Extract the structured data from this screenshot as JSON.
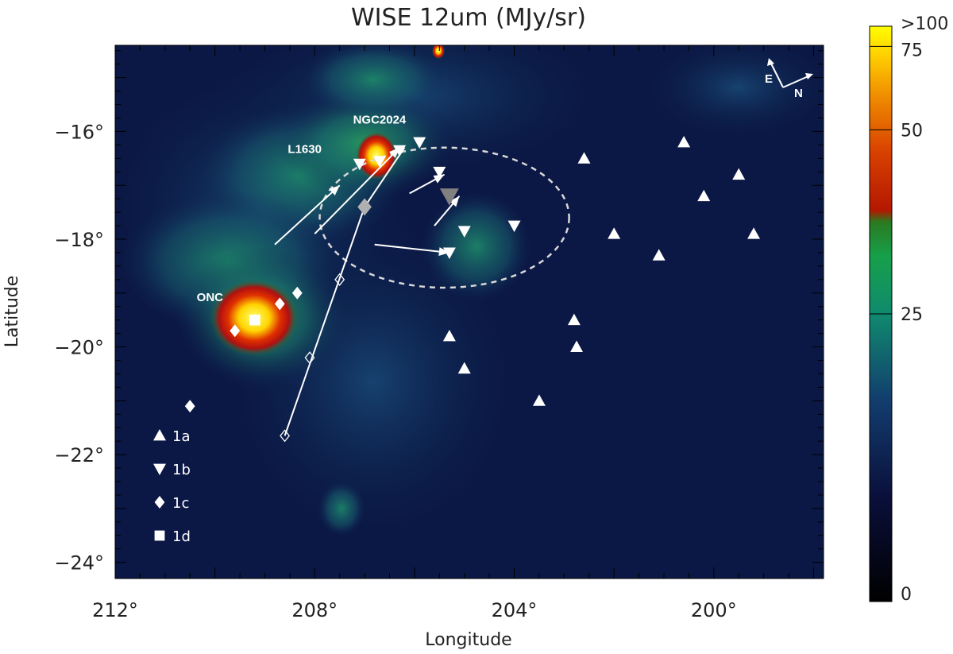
{
  "chart_data": {
    "type": "scatter",
    "title": "WISE 12um (MJy/sr)",
    "xlabel": "Longitude",
    "ylabel": "Latitude",
    "xlim": [
      212,
      197.8
    ],
    "ylim": [
      -24.3,
      -14.4
    ],
    "x_ticks": [
      "212°",
      "208°",
      "204°",
      "200°"
    ],
    "y_ticks": [
      "−16°",
      "−18°",
      "−20°",
      "−22°",
      "−24°"
    ],
    "x_tick_values": [
      212,
      208,
      204,
      200
    ],
    "y_tick_values": [
      -16,
      -18,
      -20,
      -22,
      -24
    ],
    "colorbar": {
      "ticks": [
        "0",
        "25",
        "50",
        "75",
        ">100"
      ],
      "colors": [
        "#000000",
        "#0a0f3a",
        "#123d6e",
        "#108a6e",
        "#16a04a",
        "#2a7a20",
        "#b41800",
        "#d84000",
        "#f08e00",
        "#ffd000",
        "#ffff00"
      ]
    },
    "annotations": [
      {
        "text": "NGC2024",
        "x": 206.7,
        "y": -15.85
      },
      {
        "text": "L1630",
        "x": 208.2,
        "y": -16.4
      },
      {
        "text": "ONC",
        "x": 210.1,
        "y": -19.15
      }
    ],
    "compass": {
      "e": "E",
      "n": "N"
    },
    "legend": {
      "placement": "lower-left",
      "entries": [
        {
          "label": "1a",
          "marker": "triangle-up"
        },
        {
          "label": "1b",
          "marker": "triangle-down"
        },
        {
          "label": "1c",
          "marker": "diamond"
        },
        {
          "label": "1d",
          "marker": "square"
        }
      ]
    },
    "series": [
      {
        "name": "1a",
        "marker": "triangle-up",
        "color": "#ffffff",
        "points": [
          [
            202.6,
            -16.5
          ],
          [
            200.6,
            -16.2
          ],
          [
            199.5,
            -16.8
          ],
          [
            200.2,
            -17.2
          ],
          [
            202.0,
            -17.9
          ],
          [
            201.1,
            -18.3
          ],
          [
            199.2,
            -17.9
          ],
          [
            202.8,
            -19.5
          ],
          [
            202.75,
            -20.0
          ],
          [
            205.3,
            -19.8
          ],
          [
            205.0,
            -20.4
          ],
          [
            203.5,
            -21.0
          ]
        ]
      },
      {
        "name": "1b",
        "marker": "triangle-down",
        "color": "#ffffff",
        "points": [
          [
            206.7,
            -16.55
          ],
          [
            206.3,
            -16.35
          ],
          [
            205.9,
            -16.2
          ],
          [
            207.1,
            -16.6
          ],
          [
            205.5,
            -16.75
          ],
          [
            205.0,
            -17.85
          ],
          [
            204.0,
            -17.75
          ],
          [
            205.3,
            -18.25
          ]
        ]
      },
      {
        "name": "1c",
        "marker": "diamond",
        "color": "#ffffff",
        "points": [
          [
            210.5,
            -21.1
          ],
          [
            208.7,
            -19.2
          ],
          [
            208.35,
            -19.0
          ],
          [
            209.6,
            -19.7
          ]
        ]
      },
      {
        "name": "1d",
        "marker": "square",
        "color": "#ffffff",
        "points": [
          [
            209.2,
            -19.5
          ]
        ]
      },
      {
        "name": "",
        "marker": "triangle-down",
        "color": "#808080",
        "points": [
          [
            205.3,
            -17.2
          ]
        ]
      },
      {
        "name": "",
        "marker": "diamond",
        "color": "#b0b0b0",
        "points": [
          [
            207.0,
            -17.4
          ]
        ]
      },
      {
        "name": "",
        "marker": "diamond-open",
        "color": "#ffffff",
        "points": [
          [
            207.5,
            -18.75
          ],
          [
            208.1,
            -20.2
          ],
          [
            208.6,
            -21.65
          ]
        ]
      }
    ],
    "vectors": [
      [
        208.8,
        -18.1,
        207.5,
        -17.0
      ],
      [
        208.0,
        -17.9,
        206.3,
        -16.3
      ],
      [
        206.1,
        -17.15,
        205.4,
        -16.8
      ],
      [
        205.6,
        -17.75,
        205.1,
        -17.2
      ],
      [
        206.8,
        -18.1,
        205.3,
        -18.25
      ]
    ],
    "track": [
      [
        208.6,
        -21.65
      ],
      [
        207.0,
        -17.4
      ],
      [
        206.2,
        -16.3
      ]
    ],
    "ellipse": {
      "cx": 205.4,
      "cy": -17.6,
      "rx": 2.5,
      "ry": 1.3
    },
    "grid": false
  }
}
